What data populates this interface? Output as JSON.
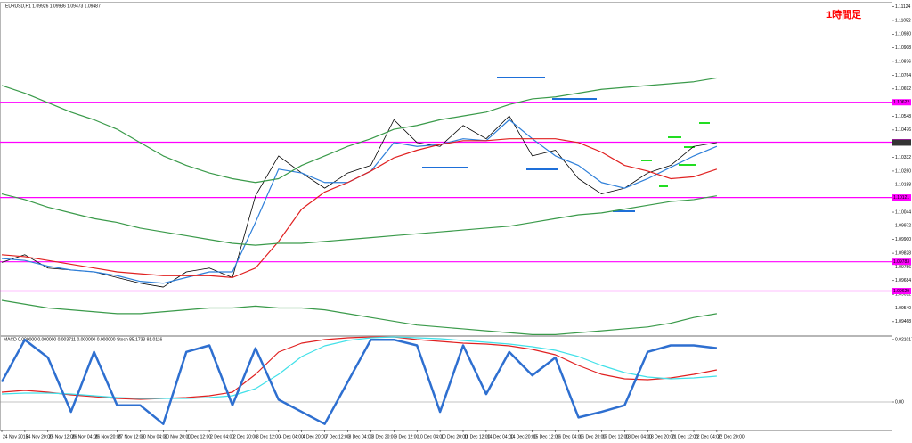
{
  "chart_data": {
    "type": "line",
    "header": "EURUSD,H1 1.09926 1.09936 1.09473 1.09487",
    "title": "1時間足",
    "categories": [
      "24 Nov 2015",
      "24 Nov 20:00",
      "25 Nov 12:00",
      "26 Nov 04:00",
      "26 Nov 20:00",
      "27 Nov 12:00",
      "30 Nov 04:00",
      "30 Nov 20:00",
      "1 Dec 12:00",
      "2 Dec 04:00",
      "2 Dec 20:00",
      "3 Dec 12:00",
      "4 Dec 04:00",
      "4 Dec 20:00",
      "7 Dec 12:00",
      "8 Dec 04:00",
      "8 Dec 20:00",
      "9 Dec 12:00",
      "10 Dec 04:00",
      "10 Dec 20:00",
      "11 Dec 12:00",
      "14 Dec 04:00",
      "14 Dec 20:00",
      "15 Dec 12:00",
      "16 Dec 04:00",
      "16 Dec 20:00",
      "17 Dec 12:00",
      "18 Dec 04:00",
      "18 Dec 20:00",
      "21 Dec 12:00",
      "22 Dec 04:00",
      "22 Dec 20:00"
    ],
    "series": [
      {
        "color": "#000000",
        "values": [
          1.0978,
          1.0982,
          1.0975,
          1.0974,
          1.0973,
          1.097,
          1.0967,
          1.0965,
          1.0973,
          1.0975,
          1.097,
          1.1013,
          1.1034,
          1.1025,
          1.1017,
          1.1025,
          1.1029,
          1.1053,
          1.1041,
          1.1039,
          1.105,
          1.1043,
          1.1055,
          1.1034,
          1.1037,
          1.1022,
          1.1014,
          1.1017,
          1.1025,
          1.1029,
          1.1039,
          1.1041
        ]
      },
      {
        "color": "#2e7fd9",
        "values": [
          1.098,
          1.0979,
          1.0976,
          1.0974,
          1.0973,
          1.0971,
          1.0968,
          1.0967,
          1.097,
          1.0973,
          1.0973,
          1.0999,
          1.1027,
          1.1025,
          1.102,
          1.102,
          1.1026,
          1.1041,
          1.1039,
          1.104,
          1.1043,
          1.1042,
          1.1053,
          1.1043,
          1.1034,
          1.1029,
          1.102,
          1.1017,
          1.1022,
          1.1028,
          1.1034,
          1.1039
        ]
      },
      {
        "color": "#e02020",
        "values": [
          1.0982,
          1.0981,
          1.0979,
          1.0977,
          1.0975,
          1.0973,
          1.0972,
          1.0971,
          1.0971,
          1.0971,
          1.097,
          1.0975,
          1.0989,
          1.1006,
          1.1015,
          1.102,
          1.1026,
          1.1033,
          1.1037,
          1.104,
          1.1042,
          1.1042,
          1.1043,
          1.1043,
          1.1043,
          1.1041,
          1.1036,
          1.1029,
          1.1026,
          1.1022,
          1.1023,
          1.1027
        ]
      },
      {
        "color": "#3a9a4a",
        "values": [
          1.1071,
          1.1067,
          1.1062,
          1.1057,
          1.1053,
          1.1048,
          1.1041,
          1.1034,
          1.1029,
          1.1025,
          1.1022,
          1.102,
          1.1022,
          1.1029,
          1.1034,
          1.1039,
          1.1043,
          1.1048,
          1.105,
          1.1053,
          1.1055,
          1.1057,
          1.1061,
          1.1064,
          1.1065,
          1.1067,
          1.1069,
          1.107,
          1.1071,
          1.1072,
          1.1073,
          1.1075
        ]
      },
      {
        "color": "#3a9a4a",
        "values": [
          1.1014,
          1.1011,
          1.1007,
          1.1004,
          1.1001,
          1.0999,
          1.0996,
          1.0994,
          1.0992,
          1.099,
          1.0988,
          1.0987,
          1.0988,
          1.0988,
          1.0989,
          1.099,
          1.0991,
          1.0992,
          1.0993,
          1.0994,
          1.0995,
          1.0996,
          1.0997,
          1.0999,
          1.1001,
          1.1003,
          1.1004,
          1.1006,
          1.1008,
          1.101,
          1.1011,
          1.1013
        ]
      },
      {
        "color": "#3a9a4a",
        "values": [
          1.0958,
          1.0956,
          1.0954,
          1.0953,
          1.0952,
          1.0951,
          1.0951,
          1.0952,
          1.0953,
          1.0954,
          1.0954,
          1.0955,
          1.0954,
          1.0954,
          1.0953,
          1.0951,
          1.0949,
          1.0947,
          1.0945,
          1.0944,
          1.0943,
          1.0942,
          1.0941,
          1.094,
          1.094,
          1.0941,
          1.0942,
          1.0943,
          1.0944,
          1.0946,
          1.0949,
          1.0951
        ]
      }
    ],
    "levels": [
      1.10622,
      1.10412,
      1.10121,
      1.09783,
      1.09629
    ],
    "level_color": "#ff00ff",
    "ylim": [
      1.09397,
      1.11146
    ],
    "yticks": [
      1.11124,
      1.11052,
      {
        "value": 1.1098,
        "label": "1.10980"
      },
      1.10908,
      1.10836,
      1.10764,
      1.10692,
      {
        "value": 1.1062,
        "label": "1.10620"
      },
      1.10548,
      1.10476,
      1.10404,
      1.10332,
      {
        "value": 1.1026,
        "label": "1.10260"
      },
      1.10188,
      1.10116,
      1.10044,
      1.09972,
      {
        "value": 1.099,
        "label": "1.09900"
      },
      1.09828,
      1.09756,
      1.09684,
      1.09612,
      {
        "value": 1.0954,
        "label": "1.09540"
      },
      1.09468
    ],
    "indicator": {
      "header": "MACD 0.000000 0.000000 0.003711 0.000000 0.000000 Stoch 85.1733 91.0116",
      "ylim": [
        -0.0093,
        0.0222
      ],
      "yticks": [
        0.021017,
        {
          "value": 0,
          "label": "0.00"
        }
      ],
      "y2lim": [
        0,
        100
      ],
      "series": [
        {
          "color": "#e02020",
          "values": [
            0.0033,
            0.0039,
            0.0033,
            0.0024,
            0.0018,
            0.0012,
            0.0009,
            0.0012,
            0.0015,
            0.0021,
            0.0033,
            0.0093,
            0.0168,
            0.0198,
            0.021,
            0.0216,
            0.0219,
            0.0219,
            0.021,
            0.0204,
            0.0198,
            0.0195,
            0.0189,
            0.0177,
            0.0159,
            0.0123,
            0.0093,
            0.0078,
            0.0075,
            0.0081,
            0.0093,
            0.0108
          ]
        },
        {
          "color": "#40e0e8",
          "values": [
            0.0027,
            0.003,
            0.003,
            0.0027,
            0.0021,
            0.0015,
            0.0012,
            0.0012,
            0.0012,
            0.0015,
            0.0021,
            0.0045,
            0.0093,
            0.0153,
            0.0189,
            0.0207,
            0.0216,
            0.0219,
            0.0216,
            0.0213,
            0.0207,
            0.0201,
            0.0195,
            0.0186,
            0.0174,
            0.0153,
            0.0123,
            0.0099,
            0.0084,
            0.0078,
            0.0081,
            0.0087
          ]
        },
        {
          "color": "#2e6fd0",
          "axis": "y2",
          "values": [
            51,
            96,
            77,
            19,
            83,
            26,
            26,
            6,
            83,
            90,
            26,
            87,
            32,
            19,
            6,
            51,
            96,
            96,
            90,
            19,
            90,
            38,
            83,
            58,
            77,
            13,
            19,
            26,
            83,
            90,
            90,
            87
          ]
        }
      ]
    }
  }
}
